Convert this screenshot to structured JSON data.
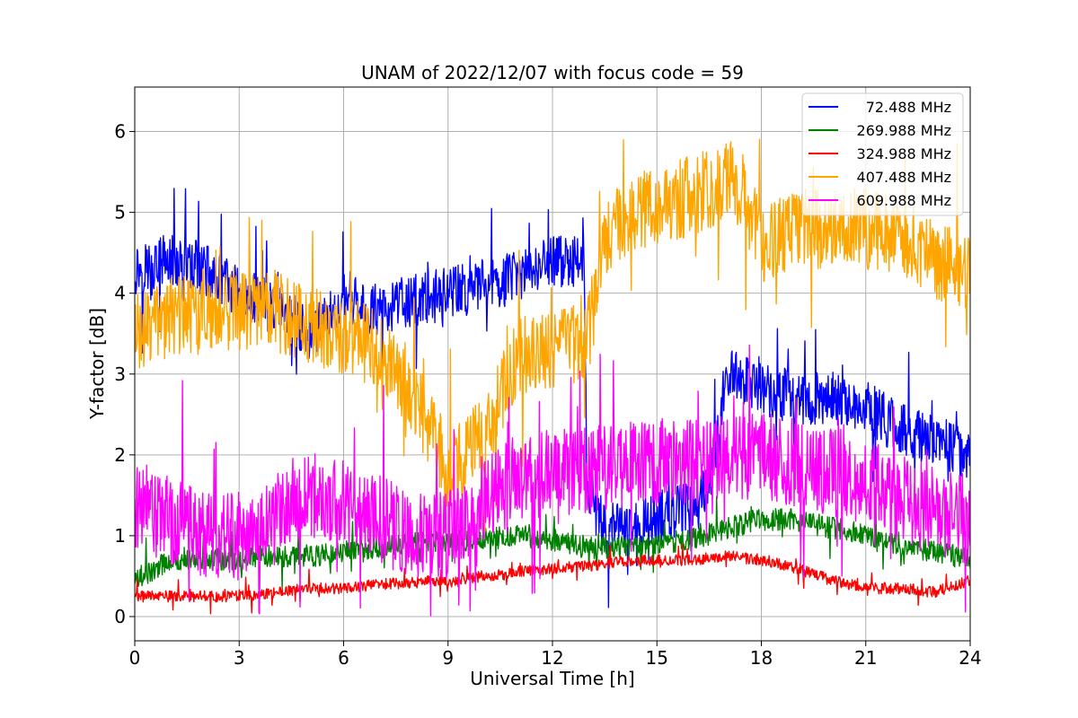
{
  "chart_data": {
    "type": "line",
    "title": "UNAM of 2022/12/07 with focus code = 59",
    "xlabel": "Universal Time [h]",
    "ylabel": "Y-factor [dB]",
    "xlim": [
      0,
      24
    ],
    "ylim": [
      -0.3,
      6.55
    ],
    "xticks": [
      0,
      3,
      6,
      9,
      12,
      15,
      18,
      21,
      24
    ],
    "yticks": [
      0,
      1,
      2,
      3,
      4,
      5,
      6
    ],
    "grid": true,
    "legend_position": "top-right",
    "series": [
      {
        "name": "  72.488 MHz",
        "color": "#0000ff",
        "x": [
          0,
          1,
          2,
          3,
          4,
          5,
          6,
          7,
          8,
          9,
          10,
          11,
          12,
          12.9,
          13,
          13.5,
          14,
          15,
          16,
          16.5,
          17,
          18,
          19,
          20,
          21,
          22,
          23,
          24
        ],
        "y": [
          4.3,
          4.4,
          4.3,
          4.0,
          3.8,
          3.5,
          3.9,
          3.8,
          3.9,
          4.0,
          4.1,
          4.2,
          4.4,
          4.4,
          1.4,
          1.1,
          1.1,
          1.2,
          1.4,
          1.6,
          3.0,
          2.8,
          2.7,
          2.7,
          2.6,
          2.3,
          2.2,
          2.0
        ],
        "noise": 0.33
      },
      {
        "name": "269.988 MHz",
        "color": "#008000",
        "x": [
          0,
          1,
          2,
          3,
          4,
          5,
          6,
          7,
          8,
          9,
          10,
          11,
          12,
          13,
          14,
          15,
          16,
          17,
          18,
          19,
          20,
          21,
          22,
          23,
          24
        ],
        "y": [
          0.45,
          0.7,
          0.7,
          0.72,
          0.75,
          0.75,
          0.8,
          0.85,
          0.9,
          0.95,
          0.95,
          1.0,
          0.95,
          0.85,
          0.85,
          0.9,
          0.95,
          1.1,
          1.2,
          1.2,
          1.1,
          1.0,
          0.9,
          0.8,
          0.7
        ],
        "noise": 0.14
      },
      {
        "name": "324.988 MHz",
        "color": "#ff0000",
        "x": [
          0,
          1,
          2,
          3,
          4,
          5,
          6,
          7,
          8,
          9,
          10,
          11,
          12,
          13,
          14,
          15,
          16,
          17,
          18,
          19,
          20,
          21,
          22,
          23,
          24
        ],
        "y": [
          0.25,
          0.25,
          0.25,
          0.25,
          0.3,
          0.35,
          0.35,
          0.4,
          0.42,
          0.45,
          0.5,
          0.55,
          0.6,
          0.62,
          0.68,
          0.7,
          0.7,
          0.75,
          0.7,
          0.6,
          0.45,
          0.35,
          0.35,
          0.3,
          0.45
        ],
        "noise": 0.07
      },
      {
        "name": "407.488 MHz",
        "color": "#ffa500",
        "x": [
          0,
          1,
          2,
          3,
          4,
          5,
          6,
          7,
          8,
          9,
          10,
          11,
          12,
          13,
          13.5,
          14,
          15,
          16,
          17,
          17.5,
          18,
          19,
          20,
          21,
          22,
          23,
          24
        ],
        "y": [
          3.5,
          3.7,
          3.8,
          3.8,
          3.8,
          3.6,
          3.5,
          3.3,
          2.8,
          1.8,
          2.2,
          3.2,
          3.3,
          3.4,
          4.6,
          4.9,
          5.1,
          5.2,
          5.4,
          5.3,
          4.6,
          4.8,
          4.8,
          4.8,
          4.7,
          4.4,
          4.3
        ],
        "noise": 0.5
      },
      {
        "name": "609.988 MHz",
        "color": "#ff00ff",
        "x": [
          0,
          1,
          2,
          3,
          4,
          5,
          6,
          7,
          8,
          9,
          10,
          11,
          12,
          13,
          14,
          15,
          16,
          17,
          18,
          19,
          20,
          21,
          22,
          23,
          24
        ],
        "y": [
          1.4,
          1.2,
          1.0,
          1.0,
          1.3,
          1.5,
          1.4,
          1.2,
          1.0,
          1.0,
          1.5,
          1.7,
          1.8,
          1.8,
          1.9,
          1.9,
          1.9,
          2.0,
          2.0,
          1.9,
          1.8,
          1.7,
          1.5,
          1.3,
          1.2
        ],
        "noise": 0.55
      }
    ]
  }
}
